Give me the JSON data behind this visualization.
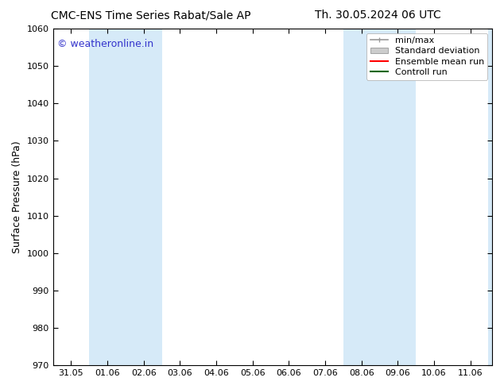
{
  "title_left": "CMC-ENS Time Series Rabat/Sale AP",
  "title_right": "Th. 30.05.2024 06 UTC",
  "ylabel": "Surface Pressure (hPa)",
  "ylim": [
    970,
    1060
  ],
  "yticks": [
    970,
    980,
    990,
    1000,
    1010,
    1020,
    1030,
    1040,
    1050,
    1060
  ],
  "xtick_labels": [
    "31.05",
    "01.06",
    "02.06",
    "03.06",
    "04.06",
    "05.06",
    "06.06",
    "07.06",
    "08.06",
    "09.06",
    "10.06",
    "11.06"
  ],
  "watermark": "© weatheronline.in",
  "watermark_color": "#3333cc",
  "shaded_bands": [
    {
      "xstart": 0.5,
      "xend": 2.5,
      "color": "#d6eaf8"
    },
    {
      "xstart": 7.5,
      "xend": 9.5,
      "color": "#d6eaf8"
    }
  ],
  "right_edge_band": {
    "xstart": 11.5,
    "xend": 11.6,
    "color": "#d6eaf8"
  },
  "legend_items": [
    {
      "label": "min/max",
      "color": "#999999",
      "style": "line_with_caps"
    },
    {
      "label": "Standard deviation",
      "color": "#cccccc",
      "style": "bar"
    },
    {
      "label": "Ensemble mean run",
      "color": "#ff0000",
      "style": "line"
    },
    {
      "label": "Controll run",
      "color": "#006600",
      "style": "line"
    }
  ],
  "bg_color": "#ffffff",
  "plot_bg_color": "#ffffff",
  "axis_color": "#000000",
  "fontsize_title": 10,
  "fontsize_labels": 9,
  "fontsize_ticks": 8,
  "fontsize_watermark": 9,
  "fontsize_legend": 8
}
